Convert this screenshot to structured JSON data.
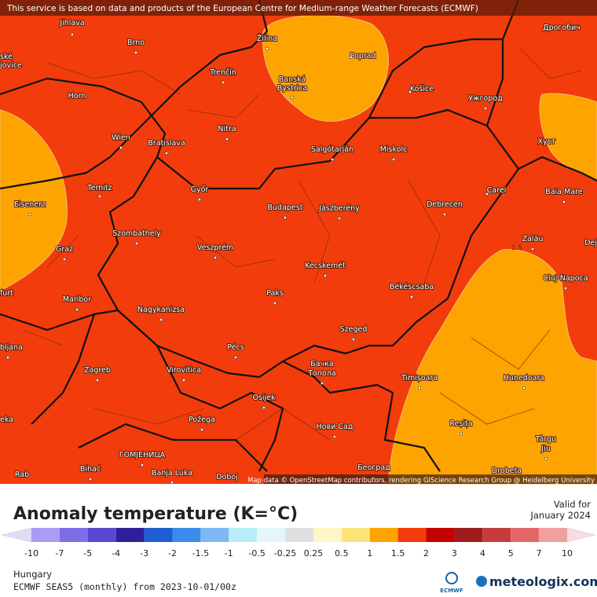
{
  "header": {
    "notice": "This service is based on data and products of the European Centre for Medium-range Weather Forecasts (ECMWF)"
  },
  "map": {
    "cities": [
      "Jihlava",
      "Brno",
      "Žilina",
      "Poprad",
      "Дрогобич",
      "ské",
      "jovice",
      "Horn",
      "Trenčín",
      "Banská",
      "Bystrica",
      "Košice",
      "Ужгород",
      "Wien",
      "Bratislava",
      "Nitra",
      "Salgótarján",
      "Miskolc",
      "Хуст",
      "Ternitz",
      "Győr",
      "Carei",
      "Baia Mare",
      "Eisenerz",
      "Budapest",
      "Jászberény",
      "Debrecen",
      "Szombathely",
      "Veszprém",
      "Zalău",
      "Dej",
      "Graz",
      "Kecskemét",
      "Cluj-Napoca",
      "furt",
      "Paks",
      "Békéscsaba",
      "Maribor",
      "Nagykanizsa",
      "Szeged",
      "bljana",
      "Pécs",
      "Zagreb",
      "Virovitica",
      "Бачка",
      "Топола",
      "Timișoara",
      "Hunedoara",
      "Osijek",
      "eka",
      "Požega",
      "Нови Сад",
      "Reșița",
      "Târgu",
      "Jiu",
      "ГОМЈЕНИЦА",
      "Bihać",
      "Banja Luka",
      "Doboj",
      "Београд",
      "Drobeta",
      "Rab"
    ],
    "contour_label": "1.5",
    "attribution": "Map data © OpenStreetMap contributors, rendering GIScience Research Group @ Heidelberg University"
  },
  "legend": {
    "title": "Anomaly temperature (K=°C)",
    "valid_label": "Valid for",
    "valid_date": "January 2024",
    "ticks": [
      "-10",
      "-7",
      "-5",
      "-4",
      "-3",
      "-2",
      "-1.5",
      "-1",
      "-0.5",
      "-0.25",
      "0.25",
      "0.5",
      "1",
      "1.5",
      "2",
      "3",
      "4",
      "5",
      "7",
      "10"
    ],
    "colors": [
      "#a99cf5",
      "#7d6ee6",
      "#5a48d2",
      "#2e1f9a",
      "#1f5ed0",
      "#3a8cec",
      "#7fb8f2",
      "#b8ecf8",
      "#e4f6fc",
      "#e0e0e0",
      "#fff6c8",
      "#fde47a",
      "#fea400",
      "#f23c0c",
      "#c40000",
      "#9e1c1c",
      "#c63c3c",
      "#e26868",
      "#f0a0a0"
    ],
    "low_color": "#e0dcf8",
    "high_color": "#f8dce0"
  },
  "footer": {
    "region": "Hungary",
    "model": "ECMWF SEAS5 (monthly) from 2023-10-01/00z",
    "logo_small": "ECMWF",
    "logo": "meteologix.com"
  }
}
